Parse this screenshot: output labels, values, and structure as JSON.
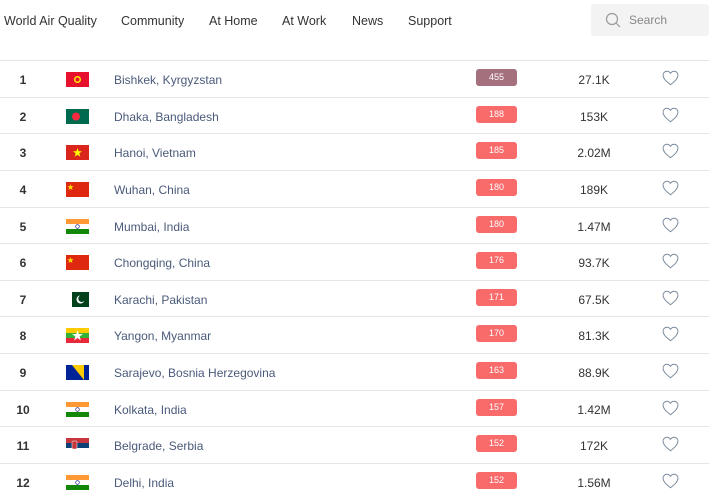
{
  "nav": {
    "brand": "World Air Quality",
    "items": [
      "Community",
      "At Home",
      "At Work",
      "News",
      "Support"
    ],
    "search_placeholder": "Search"
  },
  "colors": {
    "hazardous": "#a4707e",
    "unhealthy": "#f96a6b"
  },
  "rows": [
    {
      "rank": "1",
      "flag": "kyrgyzstan",
      "city": "Bishkek, Kyrgyzstan",
      "aqi": "455",
      "level": "hazardous",
      "followers": "27.1K"
    },
    {
      "rank": "2",
      "flag": "bangladesh",
      "city": "Dhaka, Bangladesh",
      "aqi": "188",
      "level": "unhealthy",
      "followers": "153K"
    },
    {
      "rank": "3",
      "flag": "vietnam",
      "city": "Hanoi, Vietnam",
      "aqi": "185",
      "level": "unhealthy",
      "followers": "2.02M"
    },
    {
      "rank": "4",
      "flag": "china",
      "city": "Wuhan, China",
      "aqi": "180",
      "level": "unhealthy",
      "followers": "189K"
    },
    {
      "rank": "5",
      "flag": "india",
      "city": "Mumbai, India",
      "aqi": "180",
      "level": "unhealthy",
      "followers": "1.47M"
    },
    {
      "rank": "6",
      "flag": "china",
      "city": "Chongqing, China",
      "aqi": "176",
      "level": "unhealthy",
      "followers": "93.7K"
    },
    {
      "rank": "7",
      "flag": "pakistan",
      "city": "Karachi, Pakistan",
      "aqi": "171",
      "level": "unhealthy",
      "followers": "67.5K"
    },
    {
      "rank": "8",
      "flag": "myanmar",
      "city": "Yangon, Myanmar",
      "aqi": "170",
      "level": "unhealthy",
      "followers": "81.3K"
    },
    {
      "rank": "9",
      "flag": "bosnia",
      "city": "Sarajevo, Bosnia Herzegovina",
      "aqi": "163",
      "level": "unhealthy",
      "followers": "88.9K"
    },
    {
      "rank": "10",
      "flag": "india",
      "city": "Kolkata, India",
      "aqi": "157",
      "level": "unhealthy",
      "followers": "1.42M"
    },
    {
      "rank": "11",
      "flag": "serbia",
      "city": "Belgrade, Serbia",
      "aqi": "152",
      "level": "unhealthy",
      "followers": "172K"
    },
    {
      "rank": "12",
      "flag": "india",
      "city": "Delhi, India",
      "aqi": "152",
      "level": "unhealthy",
      "followers": "1.56M"
    }
  ]
}
